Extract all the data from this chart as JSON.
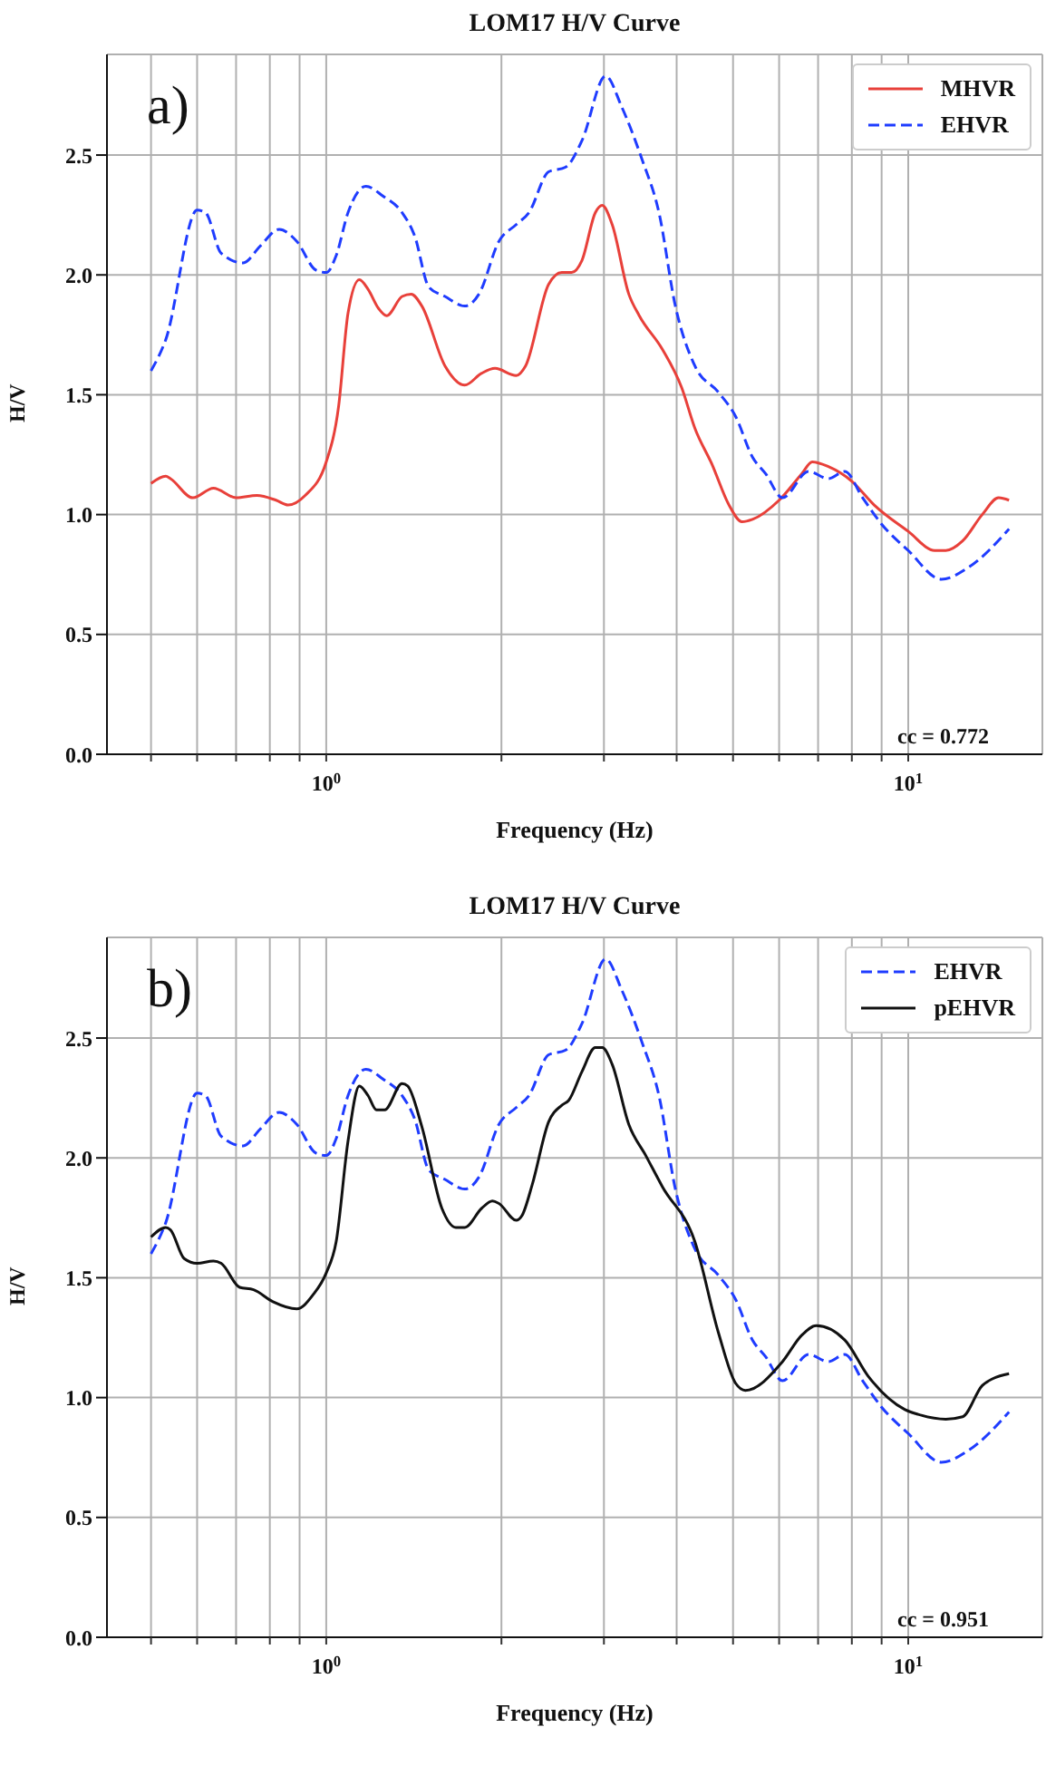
{
  "chart_data": [
    {
      "type": "line",
      "title": "LOM17 H/V Curve",
      "xlabel": "Frequency (Hz)",
      "ylabel": "H/V",
      "log": "x",
      "grid": true,
      "legend": "top right",
      "marker": "none",
      "xlim": [
        0.42,
        17
      ],
      "xticks": [
        {
          "value": 0.5,
          "label": null
        },
        {
          "value": 0.6,
          "label": null
        },
        {
          "value": 0.7,
          "label": null
        },
        {
          "value": 0.8,
          "label": null
        },
        {
          "value": 0.9,
          "label": null
        },
        {
          "value": 1,
          "label": "10$^{0}$"
        },
        {
          "value": 2,
          "label": null
        },
        {
          "value": 3,
          "label": null
        },
        {
          "value": 4,
          "label": null
        },
        {
          "value": 5,
          "label": null
        },
        {
          "value": 6,
          "label": null
        },
        {
          "value": 7,
          "label": null
        },
        {
          "value": 8,
          "label": null
        },
        {
          "value": 9,
          "label": null
        },
        {
          "value": 10,
          "label": "10$^{1}$"
        }
      ],
      "ylim": [
        0,
        2.92
      ],
      "yticks": [
        {
          "value": 0,
          "label": "0.0"
        },
        0.5,
        {
          "value": 1,
          "label": "1.0"
        },
        1.5,
        {
          "value": 2,
          "label": "2.0"
        },
        2.5
      ],
      "annotations": [
        "a)",
        "cc = 0.772"
      ],
      "series": [
        {
          "name": "MHVR",
          "color": "#e8403a",
          "line_style": "solid",
          "x": [
            0.5,
            0.53,
            0.54,
            0.59,
            0.64,
            0.7,
            0.76,
            0.82,
            0.86,
            0.92,
            1.0,
            1.05,
            1.09,
            1.14,
            1.18,
            1.23,
            1.27,
            1.35,
            1.4,
            1.46,
            1.6,
            1.73,
            1.85,
            1.95,
            2.12,
            2.2,
            2.41,
            2.54,
            2.64,
            2.75,
            2.9,
            2.98,
            3.1,
            3.31,
            3.45,
            3.78,
            4.08,
            4.3,
            4.6,
            4.92,
            5.18,
            5.4,
            6.0,
            6.56,
            6.84,
            7.29,
            7.99,
            8.74,
            10.0,
            11.1,
            11.6,
            12.4,
            13.4,
            14.3,
            14.9
          ],
          "values": [
            1.13,
            1.16,
            1.15,
            1.07,
            1.11,
            1.07,
            1.08,
            1.06,
            1.04,
            1.08,
            1.22,
            1.45,
            1.84,
            1.98,
            1.94,
            1.86,
            1.83,
            1.91,
            1.92,
            1.87,
            1.62,
            1.54,
            1.59,
            1.61,
            1.58,
            1.62,
            1.96,
            2.01,
            2.01,
            2.06,
            2.26,
            2.29,
            2.21,
            1.92,
            1.83,
            1.69,
            1.53,
            1.36,
            1.21,
            1.04,
            0.97,
            0.98,
            1.06,
            1.17,
            1.22,
            1.2,
            1.14,
            1.04,
            0.93,
            0.85,
            0.85,
            0.89,
            1.0,
            1.07,
            1.06
          ]
        },
        {
          "name": "EHVR",
          "color": "#1f3cff",
          "line_style": "dashed",
          "x": [
            0.5,
            0.53,
            0.6,
            0.62,
            0.66,
            0.72,
            0.77,
            0.83,
            0.89,
            0.96,
            1.0,
            1.04,
            1.09,
            1.17,
            1.25,
            1.35,
            1.42,
            1.5,
            1.6,
            1.73,
            1.83,
            1.98,
            2.12,
            2.23,
            2.41,
            2.58,
            2.75,
            3.02,
            3.22,
            3.49,
            3.73,
            3.98,
            4.3,
            4.72,
            5.05,
            5.4,
            5.69,
            6.08,
            6.74,
            7.29,
            7.78,
            8.35,
            9.0,
            10.0,
            11.4,
            12.7,
            14.9
          ],
          "values": [
            1.6,
            1.73,
            2.27,
            2.26,
            2.09,
            2.05,
            2.12,
            2.19,
            2.14,
            2.02,
            2.01,
            2.08,
            2.26,
            2.37,
            2.33,
            2.26,
            2.16,
            1.95,
            1.91,
            1.87,
            1.92,
            2.14,
            2.21,
            2.26,
            2.43,
            2.45,
            2.56,
            2.83,
            2.7,
            2.48,
            2.26,
            1.87,
            1.62,
            1.51,
            1.41,
            1.24,
            1.17,
            1.07,
            1.18,
            1.15,
            1.18,
            1.07,
            0.96,
            0.85,
            0.73,
            0.78,
            0.94
          ]
        }
      ]
    },
    {
      "type": "line",
      "title": "LOM17 H/V Curve",
      "xlabel": "Frequency (Hz)",
      "ylabel": "H/V",
      "log": "x",
      "grid": true,
      "legend": "top right",
      "marker": "none",
      "xlim": [
        0.42,
        17
      ],
      "xticks": [
        {
          "value": 0.5,
          "label": null
        },
        {
          "value": 0.6,
          "label": null
        },
        {
          "value": 0.7,
          "label": null
        },
        {
          "value": 0.8,
          "label": null
        },
        {
          "value": 0.9,
          "label": null
        },
        {
          "value": 1,
          "label": "10$^{0}$"
        },
        {
          "value": 2,
          "label": null
        },
        {
          "value": 3,
          "label": null
        },
        {
          "value": 4,
          "label": null
        },
        {
          "value": 5,
          "label": null
        },
        {
          "value": 6,
          "label": null
        },
        {
          "value": 7,
          "label": null
        },
        {
          "value": 8,
          "label": null
        },
        {
          "value": 9,
          "label": null
        },
        {
          "value": 10,
          "label": "10$^{1}$"
        }
      ],
      "ylim": [
        0,
        2.92
      ],
      "yticks": [
        {
          "value": 0,
          "label": "0.0"
        },
        0.5,
        {
          "value": 1,
          "label": "1.0"
        },
        1.5,
        {
          "value": 2,
          "label": "2.0"
        },
        2.5
      ],
      "annotations": [
        "b)",
        "cc = 0.951"
      ],
      "series": [
        {
          "name": "EHVR",
          "color": "#1f3cff",
          "line_style": "dashed",
          "x": [
            0.5,
            0.53,
            0.6,
            0.62,
            0.66,
            0.72,
            0.77,
            0.83,
            0.89,
            0.96,
            1.0,
            1.04,
            1.09,
            1.17,
            1.25,
            1.35,
            1.42,
            1.5,
            1.6,
            1.73,
            1.83,
            1.98,
            2.12,
            2.23,
            2.41,
            2.58,
            2.75,
            3.02,
            3.22,
            3.49,
            3.73,
            3.98,
            4.3,
            4.72,
            5.05,
            5.4,
            5.69,
            6.08,
            6.74,
            7.29,
            7.78,
            8.35,
            9.0,
            10.0,
            11.4,
            12.7,
            14.9
          ],
          "values": [
            1.6,
            1.73,
            2.27,
            2.26,
            2.09,
            2.05,
            2.12,
            2.19,
            2.14,
            2.02,
            2.01,
            2.08,
            2.26,
            2.37,
            2.33,
            2.26,
            2.16,
            1.95,
            1.91,
            1.87,
            1.92,
            2.14,
            2.21,
            2.26,
            2.43,
            2.45,
            2.56,
            2.83,
            2.7,
            2.48,
            2.26,
            1.87,
            1.62,
            1.51,
            1.41,
            1.24,
            1.17,
            1.07,
            1.18,
            1.15,
            1.18,
            1.07,
            0.96,
            0.85,
            0.73,
            0.78,
            0.94
          ]
        },
        {
          "name": "pEHVR",
          "color": "#111111",
          "line_style": "solid",
          "x": [
            0.5,
            0.53,
            0.54,
            0.57,
            0.6,
            0.64,
            0.66,
            0.71,
            0.75,
            0.81,
            0.89,
            0.95,
            1.0,
            1.04,
            1.09,
            1.14,
            1.18,
            1.22,
            1.26,
            1.35,
            1.38,
            1.46,
            1.58,
            1.67,
            1.73,
            1.85,
            1.93,
            1.98,
            2.12,
            2.17,
            2.26,
            2.41,
            2.54,
            2.61,
            2.75,
            2.9,
            2.98,
            3.1,
            3.31,
            3.54,
            3.78,
            4.3,
            4.72,
            5.05,
            5.25,
            6.08,
            6.56,
            6.95,
            7.78,
            8.53,
            9.87,
            10.4,
            11.6,
            12.4,
            13.4,
            14.0,
            14.9
          ],
          "values": [
            1.67,
            1.71,
            1.7,
            1.58,
            1.56,
            1.57,
            1.56,
            1.46,
            1.45,
            1.4,
            1.37,
            1.43,
            1.52,
            1.65,
            2.07,
            2.3,
            2.26,
            2.2,
            2.2,
            2.31,
            2.3,
            2.13,
            1.79,
            1.71,
            1.71,
            1.79,
            1.82,
            1.81,
            1.74,
            1.76,
            1.89,
            2.15,
            2.22,
            2.24,
            2.36,
            2.46,
            2.46,
            2.39,
            2.14,
            2.01,
            1.88,
            1.65,
            1.27,
            1.06,
            1.03,
            1.15,
            1.26,
            1.3,
            1.24,
            1.09,
            0.95,
            0.93,
            0.91,
            0.92,
            1.05,
            1.08,
            1.1
          ]
        }
      ]
    }
  ]
}
